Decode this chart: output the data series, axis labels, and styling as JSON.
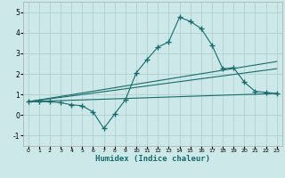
{
  "xlabel": "Humidex (Indice chaleur)",
  "background_color": "#cce8e8",
  "line_color": "#1a6b6b",
  "grid_color": "#aacccc",
  "xlim": [
    -0.5,
    23.5
  ],
  "ylim": [
    -1.5,
    5.5
  ],
  "xticks": [
    0,
    1,
    2,
    3,
    4,
    5,
    6,
    7,
    8,
    9,
    10,
    11,
    12,
    13,
    14,
    15,
    16,
    17,
    18,
    19,
    20,
    21,
    22,
    23
  ],
  "yticks": [
    -1,
    0,
    1,
    2,
    3,
    4,
    5
  ],
  "curve_x": [
    0,
    1,
    2,
    3,
    4,
    5,
    6,
    7,
    8,
    9,
    10,
    11,
    12,
    13,
    14,
    15,
    16,
    17,
    18,
    19,
    20,
    21,
    22,
    23
  ],
  "curve_y": [
    0.65,
    0.65,
    0.65,
    0.6,
    0.5,
    0.45,
    0.15,
    -0.65,
    0.05,
    0.75,
    2.05,
    2.7,
    3.3,
    3.55,
    4.75,
    4.55,
    4.2,
    3.4,
    2.25,
    2.3,
    1.6,
    1.15,
    1.1,
    1.05
  ],
  "line1_x": [
    0,
    23
  ],
  "line1_y": [
    0.65,
    1.05
  ],
  "line2_x": [
    0,
    23
  ],
  "line2_y": [
    0.65,
    2.6
  ],
  "line3_x": [
    0,
    23
  ],
  "line3_y": [
    0.65,
    2.25
  ]
}
